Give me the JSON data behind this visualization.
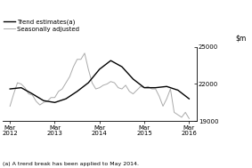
{
  "ylim": [
    19000,
    25000
  ],
  "yticks": [
    19000,
    22000,
    25000
  ],
  "ytick_labels": [
    "19000",
    "22000",
    "25000"
  ],
  "footnote": "(a) A trend break has been applied to May 2014.",
  "legend_trend": "Trend estimates(a)",
  "legend_seasonal": "Seasonally adjusted",
  "trend_color": "#000000",
  "seasonal_color": "#aaaaaa",
  "background_color": "#ffffff",
  "x_tick_positions": [
    0,
    12,
    24,
    36,
    48
  ],
  "x_tick_labels": [
    "Mar\n2012",
    "Mar\n2013",
    "Mar\n2014",
    "Mar\n2015",
    "Mar\n2016"
  ],
  "xlim": [
    -2,
    50
  ],
  "trend_x": [
    0,
    3,
    6,
    9,
    12,
    15,
    18,
    21,
    24,
    27,
    30,
    33,
    36,
    39,
    42,
    45,
    48
  ],
  "trend_y": [
    21600,
    21700,
    21200,
    20650,
    20500,
    20800,
    21400,
    22100,
    23200,
    23900,
    23400,
    22400,
    21700,
    21700,
    21800,
    21500,
    20800
  ],
  "seasonal_x": [
    0,
    1,
    2,
    3,
    4,
    5,
    6,
    7,
    8,
    9,
    10,
    11,
    12,
    13,
    14,
    15,
    16,
    17,
    18,
    19,
    20,
    21,
    22,
    23,
    24,
    25,
    26,
    27,
    28,
    29,
    30,
    31,
    32,
    33,
    34,
    35,
    36,
    37,
    38,
    39,
    40,
    41,
    42,
    43,
    44,
    45,
    46,
    47,
    48
  ],
  "seasonal_y": [
    20200,
    21200,
    22100,
    22000,
    21700,
    21200,
    21100,
    20600,
    20300,
    20500,
    20600,
    20900,
    20900,
    21400,
    21600,
    22100,
    22600,
    23400,
    24000,
    24000,
    24500,
    23200,
    22100,
    21600,
    21700,
    21900,
    22000,
    22200,
    22100,
    21700,
    21600,
    21900,
    21400,
    21200,
    21500,
    21800,
    21700,
    21800,
    21600,
    21600,
    21000,
    20200,
    20800,
    21600,
    19700,
    19500,
    19300,
    19700,
    19200
  ]
}
